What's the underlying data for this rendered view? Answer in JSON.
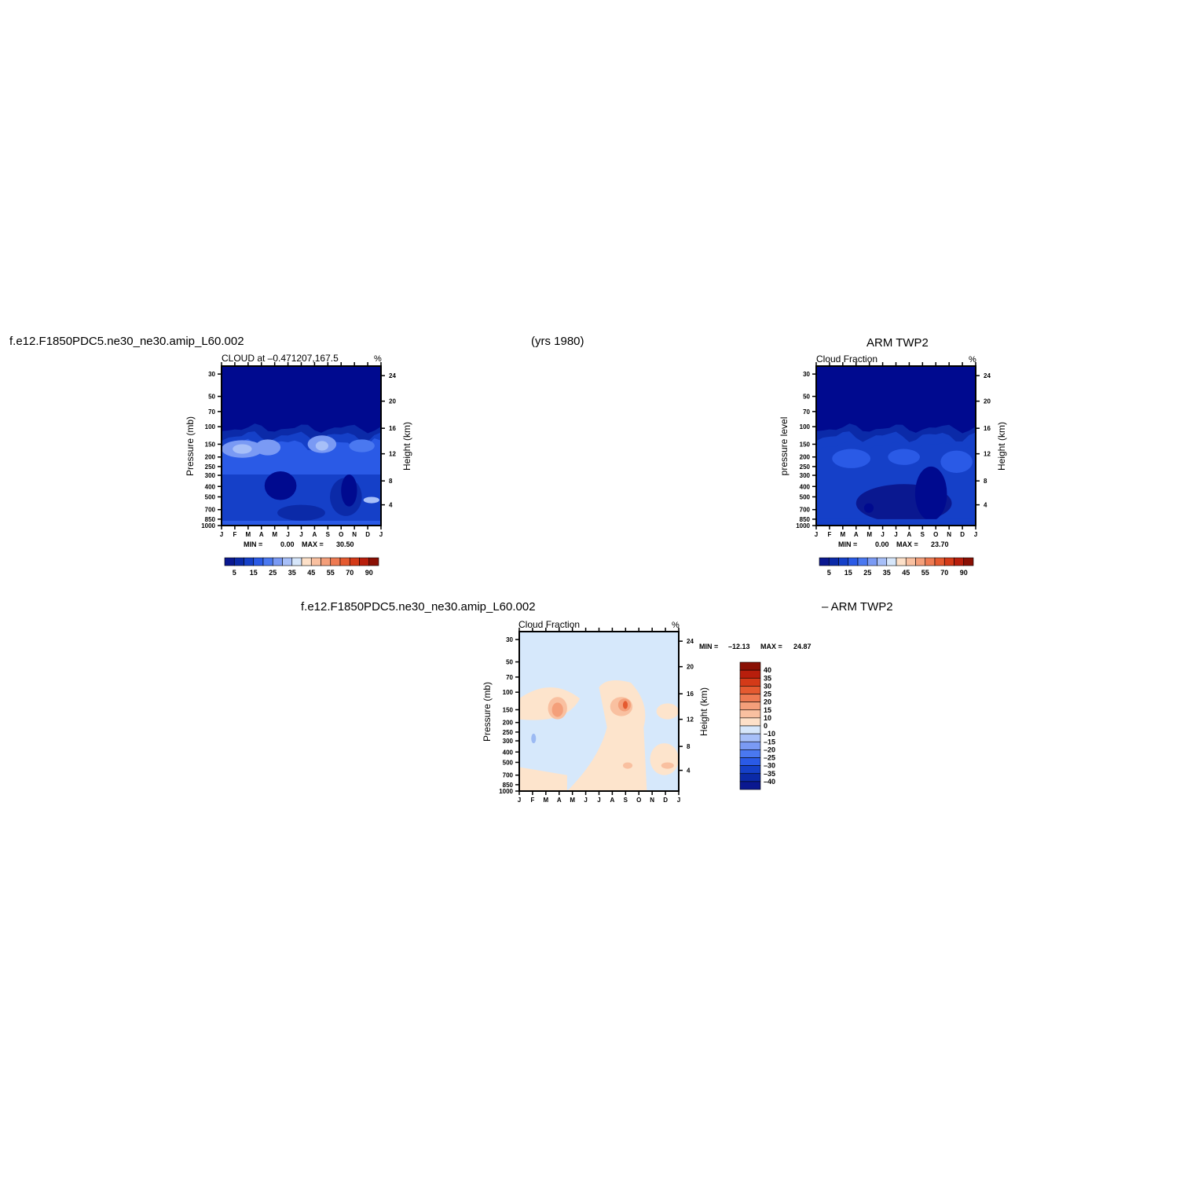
{
  "header": {
    "case_name": "f.e12.F1850PDC5.ne30_ne30.amip_L60.002",
    "years": "(yrs 1980)",
    "obs_name": "ARM TWP2"
  },
  "diff_header": {
    "case_name": "f.e12.F1850PDC5.ne30_ne30.amip_L60.002",
    "obs_name": "– ARM TWP2"
  },
  "palette": {
    "blues": [
      "#0a1890",
      "#0b2aa8",
      "#1540c8",
      "#2a5ae6",
      "#4a78f0",
      "#7a9af4",
      "#a7bff8",
      "#d6e6fa"
    ],
    "reds": [
      "#fde0c8",
      "#f9c0a0",
      "#f49f7a",
      "#ee7a52",
      "#e55a30",
      "#d43a18",
      "#b81e0c",
      "#8a1004"
    ],
    "bg_dark": "#000a8f",
    "light_blue": "#d6e8fb",
    "light_peach": "#fde4cc"
  },
  "chart_data": [
    {
      "type": "heatmap",
      "panel": "model",
      "title": "CLOUD at –0.471207,167.5",
      "unit": "%",
      "xlabel": "",
      "ylabel": "Pressure (mb)",
      "ylabel_right": "Height (km)",
      "x_ticks": [
        "J",
        "F",
        "M",
        "A",
        "M",
        "J",
        "J",
        "A",
        "S",
        "O",
        "N",
        "D",
        "J"
      ],
      "y_ticks": [
        "30",
        "50",
        "70",
        "100",
        "150",
        "200",
        "250",
        "300",
        "400",
        "500",
        "700",
        "850",
        "1000"
      ],
      "y_right_ticks": [
        "24",
        "20",
        "16",
        "12",
        "8",
        "4"
      ],
      "min": 0.0,
      "max": 30.5,
      "stats": {
        "min_label": "MIN =",
        "min_value": "0.00",
        "max_label": "MAX =",
        "max_value": "30.50"
      },
      "colorbar": {
        "labels": [
          "5",
          "15",
          "25",
          "35",
          "45",
          "55",
          "70",
          "90"
        ]
      }
    },
    {
      "type": "heatmap",
      "panel": "obs",
      "title": "Cloud Fraction",
      "unit": "%",
      "xlabel": "",
      "ylabel": "pressure level",
      "ylabel_right": "Height (km)",
      "x_ticks": [
        "J",
        "F",
        "M",
        "A",
        "M",
        "J",
        "J",
        "A",
        "S",
        "O",
        "N",
        "D",
        "J"
      ],
      "y_ticks": [
        "30",
        "50",
        "70",
        "100",
        "150",
        "200",
        "250",
        "300",
        "400",
        "500",
        "700",
        "850",
        "1000"
      ],
      "y_right_ticks": [
        "24",
        "20",
        "16",
        "12",
        "8",
        "4"
      ],
      "min": 0.0,
      "max": 23.7,
      "stats": {
        "min_label": "MIN =",
        "min_value": "0.00",
        "max_label": "MAX =",
        "max_value": "23.70"
      },
      "colorbar": {
        "labels": [
          "5",
          "15",
          "25",
          "35",
          "45",
          "55",
          "70",
          "90"
        ]
      }
    },
    {
      "type": "heatmap",
      "panel": "difference",
      "title": "Cloud Fraction",
      "unit": "%",
      "xlabel": "",
      "ylabel": "Pressure (mb)",
      "ylabel_right": "Height (km)",
      "x_ticks": [
        "J",
        "F",
        "M",
        "A",
        "M",
        "J",
        "J",
        "A",
        "S",
        "O",
        "N",
        "D",
        "J"
      ],
      "y_ticks": [
        "30",
        "50",
        "70",
        "100",
        "150",
        "200",
        "250",
        "300",
        "400",
        "500",
        "700",
        "850",
        "1000"
      ],
      "y_right_ticks": [
        "24",
        "20",
        "16",
        "12",
        "8",
        "4"
      ],
      "min": -12.13,
      "max": 24.87,
      "stats": {
        "min_label": "MIN =",
        "min_value": "–12.13",
        "max_label": "MAX =",
        "max_value": "24.87"
      },
      "colorbar": {
        "labels": [
          "40",
          "35",
          "30",
          "25",
          "20",
          "15",
          "10",
          "0",
          "–10",
          "–15",
          "–20",
          "–25",
          "–30",
          "–35",
          "–40"
        ]
      }
    }
  ]
}
